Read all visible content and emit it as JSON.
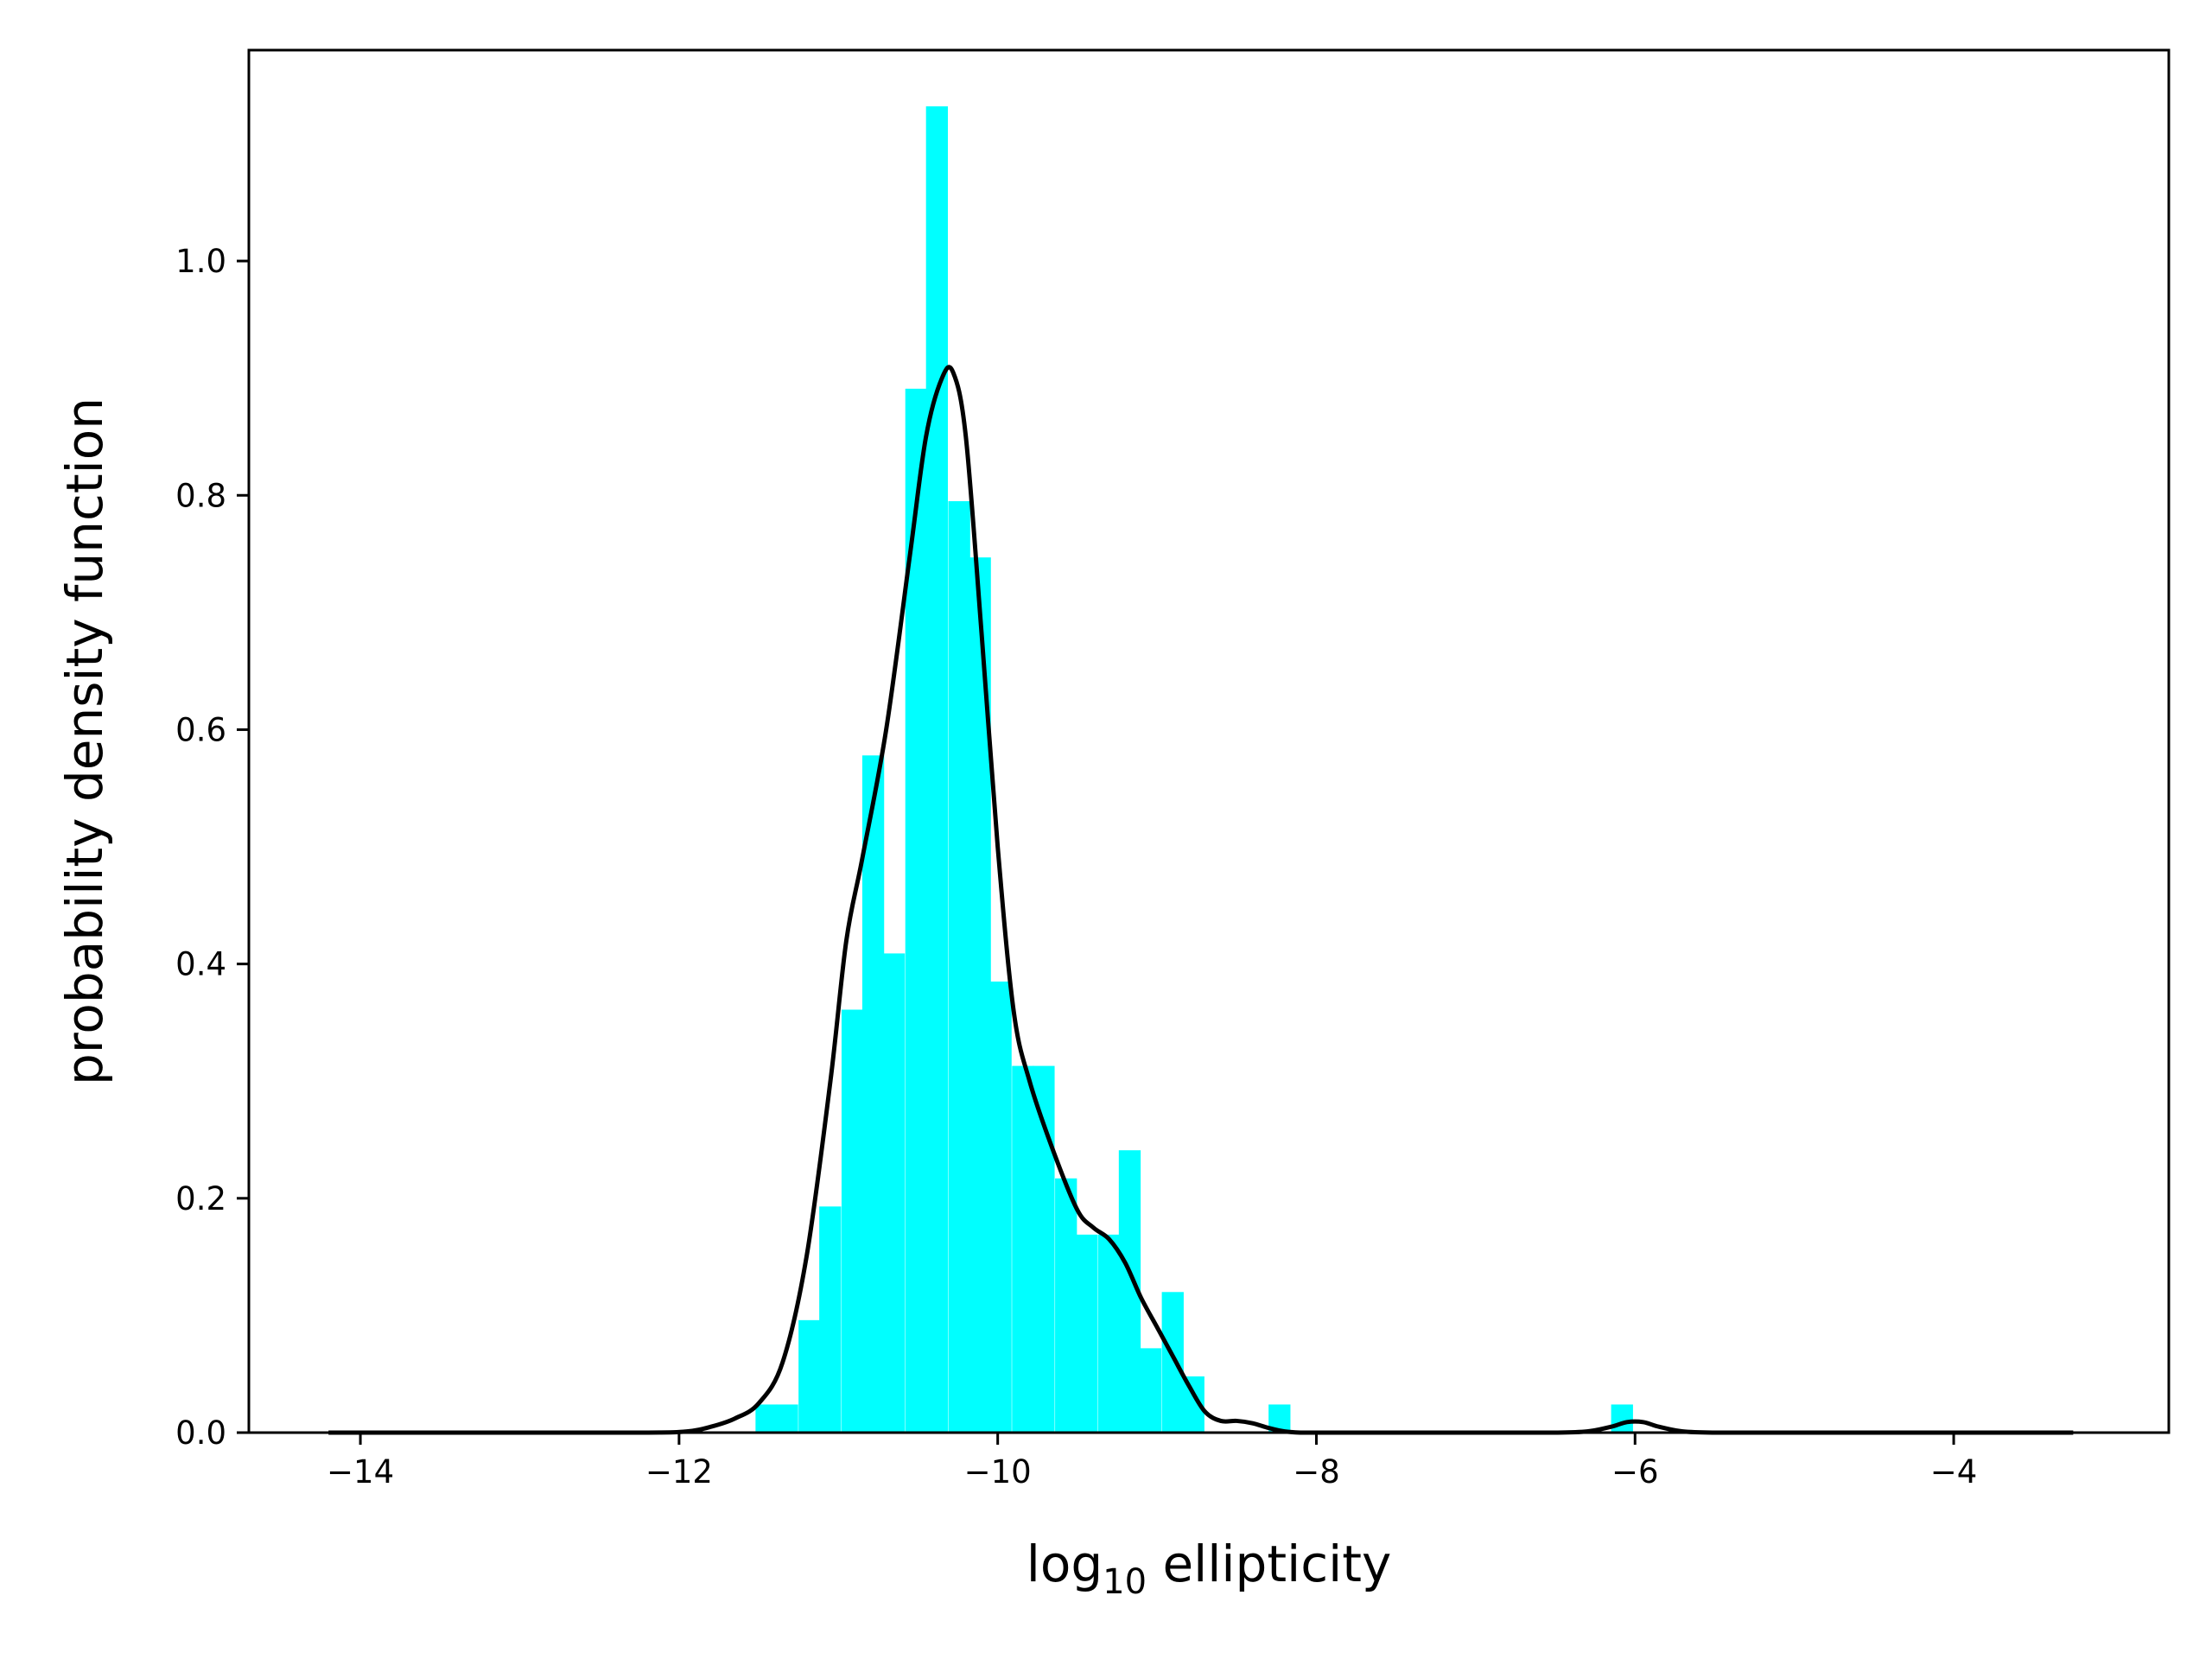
{
  "chart_data": {
    "type": "bar",
    "title": "",
    "xlabel": {
      "main": "log",
      "sub": "10",
      "suffix": " ellipticity"
    },
    "ylabel": "probability density function",
    "xlim": [
      -14.7,
      -2.65
    ],
    "ylim": [
      0,
      1.18
    ],
    "x_ticks": [
      -14,
      -12,
      -10,
      -8,
      -6,
      -4
    ],
    "x_tick_labels": [
      "−14",
      "−12",
      "−10",
      "−8",
      "−6",
      "−4"
    ],
    "y_ticks": [
      0.0,
      0.2,
      0.4,
      0.6,
      0.8,
      1.0
    ],
    "y_tick_labels": [
      "0.0",
      "0.2",
      "0.4",
      "0.6",
      "0.8",
      "1.0"
    ],
    "grid": false,
    "colors": {
      "histogram": "#00ffff",
      "kde": "#000000"
    },
    "histogram": {
      "bin_width": 0.134,
      "bins": [
        {
          "x": -11.52,
          "y": 0.024
        },
        {
          "x": -11.39,
          "y": 0.024
        },
        {
          "x": -11.25,
          "y": 0.096
        },
        {
          "x": -11.12,
          "y": 0.193
        },
        {
          "x": -10.98,
          "y": 0.361
        },
        {
          "x": -10.85,
          "y": 0.578
        },
        {
          "x": -10.72,
          "y": 0.409
        },
        {
          "x": -10.58,
          "y": 0.891
        },
        {
          "x": -10.45,
          "y": 1.132
        },
        {
          "x": -10.31,
          "y": 0.795
        },
        {
          "x": -10.18,
          "y": 0.747
        },
        {
          "x": -10.05,
          "y": 0.385
        },
        {
          "x": -9.91,
          "y": 0.313
        },
        {
          "x": -9.78,
          "y": 0.313
        },
        {
          "x": -9.64,
          "y": 0.217
        },
        {
          "x": -9.51,
          "y": 0.169
        },
        {
          "x": -9.37,
          "y": 0.169
        },
        {
          "x": -9.24,
          "y": 0.241
        },
        {
          "x": -9.11,
          "y": 0.072
        },
        {
          "x": -8.97,
          "y": 0.12
        },
        {
          "x": -8.84,
          "y": 0.048
        },
        {
          "x": -8.7,
          "y": 0.0
        },
        {
          "x": -8.57,
          "y": 0.0
        },
        {
          "x": -8.43,
          "y": 0.0
        },
        {
          "x": -8.3,
          "y": 0.024
        },
        {
          "x": -6.15,
          "y": 0.024
        }
      ]
    },
    "kde": {
      "x": [
        -14.2,
        -13.0,
        -12.2,
        -11.95,
        -11.8,
        -11.65,
        -11.5,
        -11.35,
        -11.2,
        -11.05,
        -10.95,
        -10.85,
        -10.7,
        -10.55,
        -10.45,
        -10.35,
        -10.28,
        -10.2,
        -10.1,
        -10.0,
        -9.9,
        -9.8,
        -9.65,
        -9.5,
        -9.4,
        -9.3,
        -9.2,
        -9.1,
        -9.0,
        -8.9,
        -8.8,
        -8.7,
        -8.6,
        -8.5,
        -8.4,
        -8.3,
        -8.2,
        -8.1,
        -8.0,
        -7.8,
        -7.5,
        -7.0,
        -6.5,
        -6.3,
        -6.15,
        -6.05,
        -5.95,
        -5.85,
        -5.7,
        -5.5,
        -5.0,
        -4.0,
        -3.25
      ],
      "y": [
        0.0,
        0.0,
        0.0,
        0.001,
        0.005,
        0.012,
        0.025,
        0.06,
        0.15,
        0.3,
        0.42,
        0.49,
        0.6,
        0.75,
        0.85,
        0.9,
        0.905,
        0.85,
        0.68,
        0.5,
        0.36,
        0.3,
        0.24,
        0.19,
        0.175,
        0.165,
        0.145,
        0.115,
        0.09,
        0.065,
        0.04,
        0.018,
        0.01,
        0.01,
        0.008,
        0.004,
        0.001,
        0.0,
        0.0,
        0.0,
        0.0,
        0.0,
        0.0,
        0.001,
        0.005,
        0.009,
        0.009,
        0.005,
        0.001,
        0.0,
        0.0,
        0.0,
        0.0
      ]
    }
  }
}
